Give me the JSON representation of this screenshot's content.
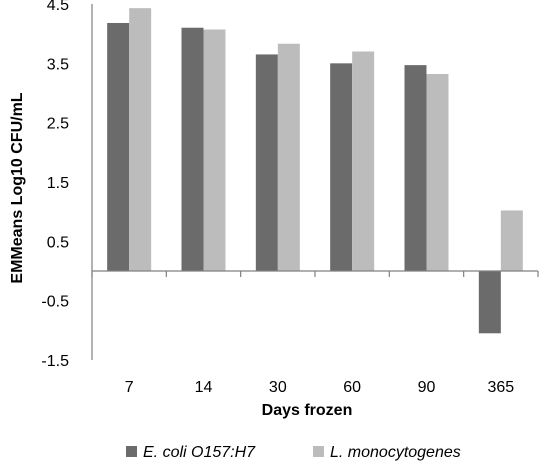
{
  "chart_data": {
    "type": "bar",
    "title": "",
    "xlabel": "Days frozen",
    "ylabel": "EMMeans Log10 CFU/mL",
    "categories": [
      "7",
      "14",
      "30",
      "60",
      "90",
      "365"
    ],
    "series": [
      {
        "name": "E. coli O157:H7",
        "color": "#6b6b6b",
        "values": [
          4.18,
          4.1,
          3.65,
          3.5,
          3.47,
          -1.05
        ]
      },
      {
        "name": "L. monocytogenes",
        "color": "#bcbcbc",
        "values": [
          4.43,
          4.07,
          3.83,
          3.7,
          3.32,
          1.02
        ]
      }
    ],
    "yticks": [
      "4.5",
      "3.5",
      "2.5",
      "1.5",
      "0.5",
      "-0.5",
      "-1.5"
    ],
    "ylim": [
      -1.5,
      4.5
    ],
    "grid": false,
    "legend_position": "bottom"
  }
}
